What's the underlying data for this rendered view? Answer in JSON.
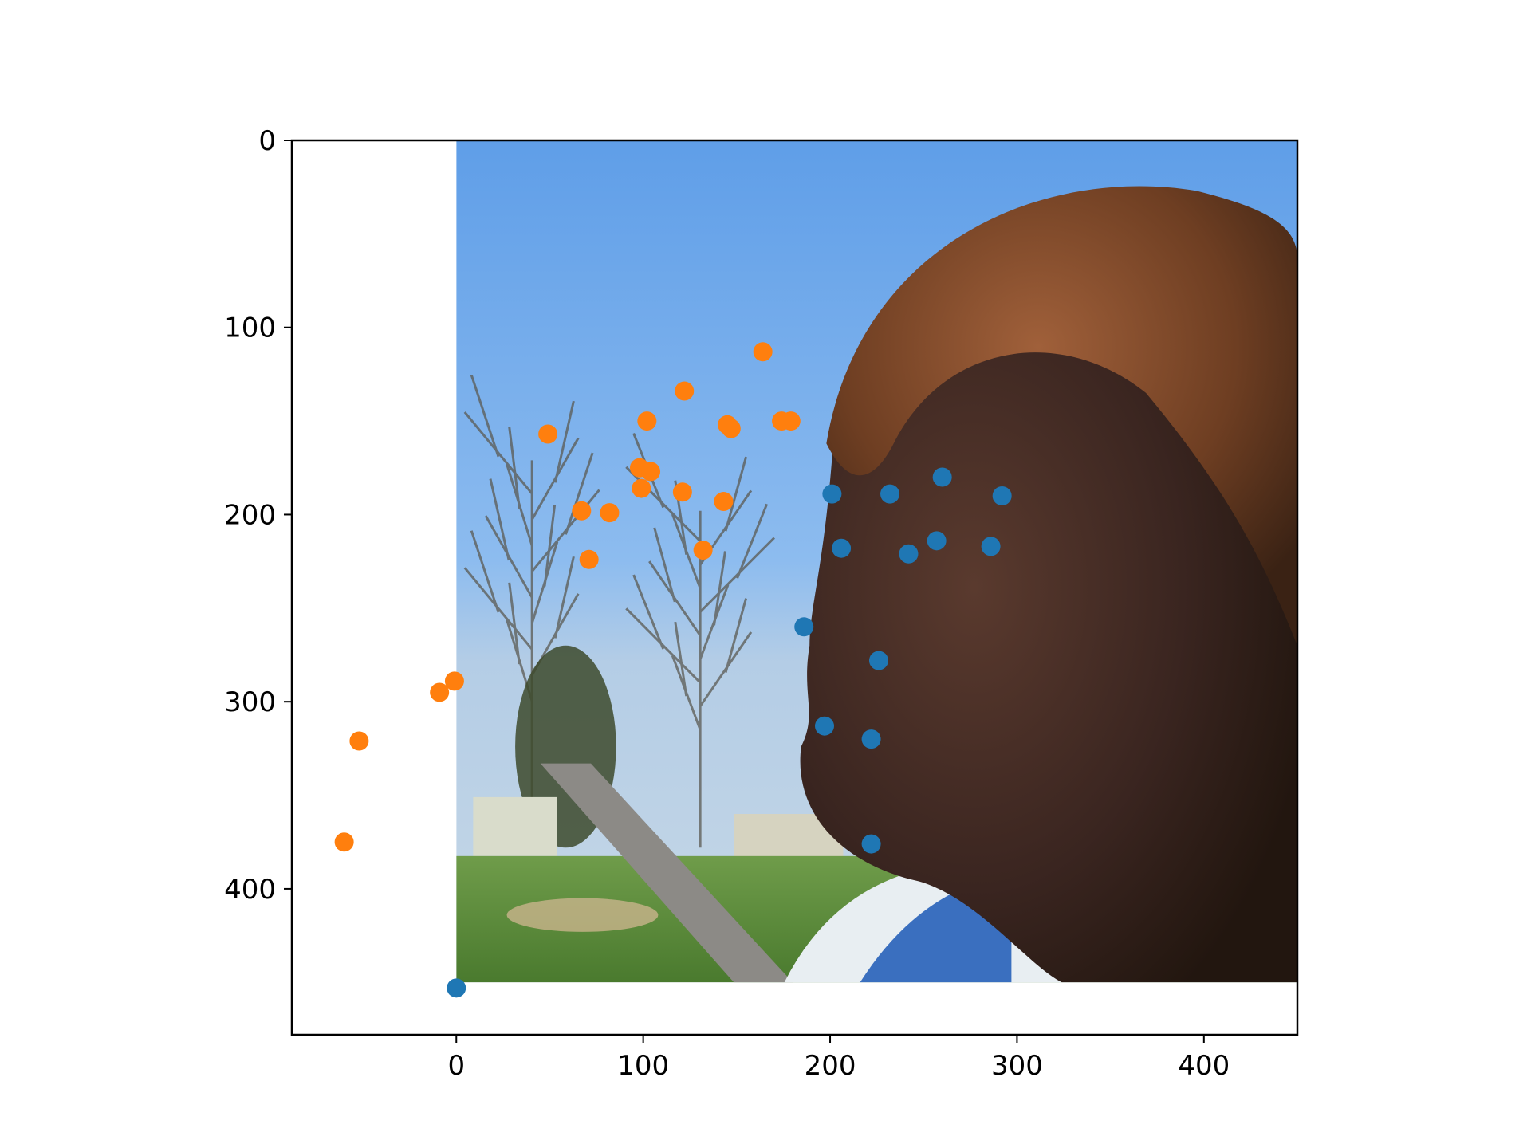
{
  "chart_data": {
    "type": "scatter",
    "title": "",
    "xlabel": "",
    "ylabel": "",
    "xlim": [
      -88,
      450
    ],
    "ylim": [
      478,
      0
    ],
    "y_axis_inverted": true,
    "grid": false,
    "legend": "none",
    "background_image": {
      "description": "photo",
      "extent_x": [
        0,
        450
      ],
      "extent_y": [
        450,
        0
      ]
    },
    "x_ticks": [
      {
        "value": 0,
        "label": "0"
      },
      {
        "value": 100,
        "label": "100"
      },
      {
        "value": 200,
        "label": "200"
      },
      {
        "value": 300,
        "label": "300"
      },
      {
        "value": 400,
        "label": "400"
      }
    ],
    "y_ticks": [
      {
        "value": 0,
        "label": "0"
      },
      {
        "value": 100,
        "label": "100"
      },
      {
        "value": 200,
        "label": "200"
      },
      {
        "value": 300,
        "label": "300"
      },
      {
        "value": 400,
        "label": "400"
      }
    ],
    "series": [
      {
        "color": "#1f77b4",
        "points": [
          [
            201,
            189
          ],
          [
            232,
            189
          ],
          [
            260,
            180
          ],
          [
            292,
            190
          ],
          [
            206,
            218
          ],
          [
            242,
            221
          ],
          [
            257,
            214
          ],
          [
            286,
            217
          ],
          [
            186,
            260
          ],
          [
            226,
            278
          ],
          [
            197,
            313
          ],
          [
            222,
            320
          ],
          [
            222,
            376
          ],
          [
            0,
            453
          ]
        ]
      },
      {
        "color": "#ff7f0e",
        "points": [
          [
            49,
            157
          ],
          [
            102,
            150
          ],
          [
            122,
            134
          ],
          [
            164,
            113
          ],
          [
            145,
            152
          ],
          [
            147,
            154
          ],
          [
            174,
            150
          ],
          [
            179,
            150
          ],
          [
            98,
            175
          ],
          [
            104,
            177
          ],
          [
            99,
            186
          ],
          [
            121,
            188
          ],
          [
            143,
            193
          ],
          [
            67,
            198
          ],
          [
            82,
            199
          ],
          [
            71,
            224
          ],
          [
            132,
            219
          ],
          [
            -9,
            295
          ],
          [
            -1,
            289
          ],
          [
            -52,
            321
          ],
          [
            -60,
            375
          ]
        ]
      }
    ]
  }
}
